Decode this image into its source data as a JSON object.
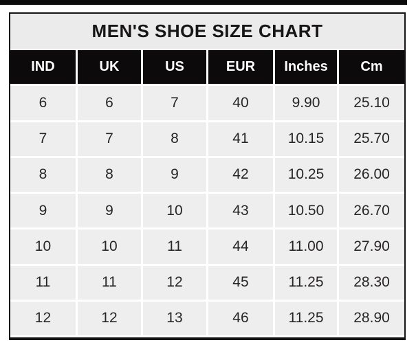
{
  "page": {
    "title": "MEN'S SHOE SIZE CHART"
  },
  "colors": {
    "top_strip": "#0b0b0b",
    "frame_border": "#151313",
    "title_bg": "#ebebeb",
    "header_bg": "#0d0a0b",
    "header_text": "#ffffff",
    "cell_bg": "#efeeee",
    "cell_text": "#282525",
    "grid_line": "#ffffff"
  },
  "chart_data": {
    "type": "table",
    "title": "MEN'S SHOE SIZE CHART",
    "columns": [
      "IND",
      "UK",
      "US",
      "EUR",
      "Inches",
      "Cm"
    ],
    "rows": [
      [
        "6",
        "6",
        "7",
        "40",
        "9.90",
        "25.10"
      ],
      [
        "7",
        "7",
        "8",
        "41",
        "10.15",
        "25.70"
      ],
      [
        "8",
        "8",
        "9",
        "42",
        "10.25",
        "26.00"
      ],
      [
        "9",
        "9",
        "10",
        "43",
        "10.50",
        "26.70"
      ],
      [
        "10",
        "10",
        "11",
        "44",
        "11.00",
        "27.90"
      ],
      [
        "11",
        "11",
        "12",
        "45",
        "11.25",
        "28.30"
      ],
      [
        "12",
        "12",
        "13",
        "46",
        "11.25",
        "28.90"
      ]
    ]
  }
}
